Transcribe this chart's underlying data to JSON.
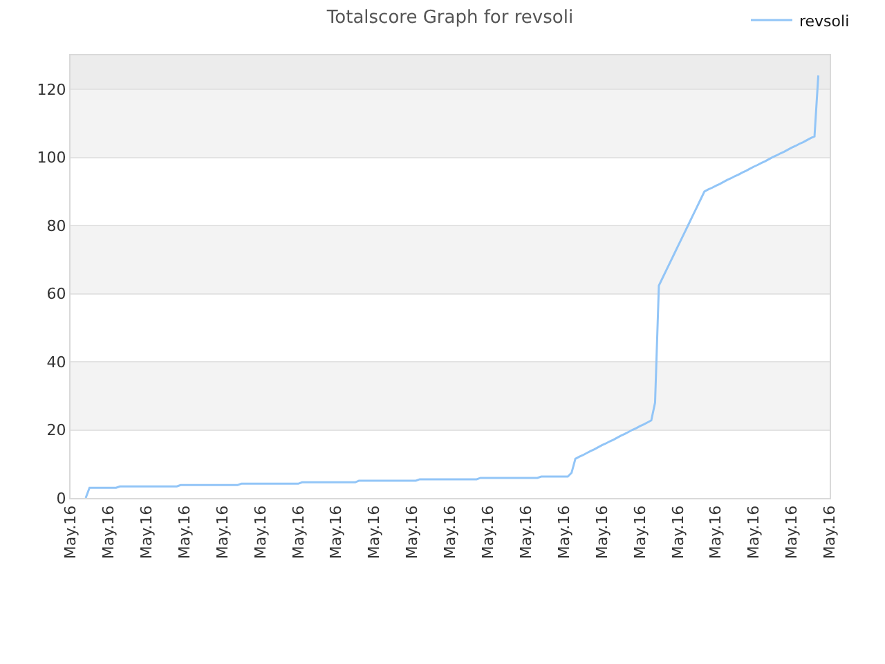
{
  "chart_data": {
    "type": "line",
    "title": "Totalscore Graph for revsoli",
    "categories": [
      "May.16",
      null,
      null,
      null,
      null,
      null,
      null,
      null,
      null,
      null,
      "May.16",
      null,
      null,
      null,
      null,
      null,
      null,
      null,
      null,
      null,
      "May.16",
      null,
      null,
      null,
      null,
      null,
      null,
      null,
      null,
      null,
      "May.16",
      null,
      null,
      null,
      null,
      null,
      null,
      null,
      null,
      null,
      "May.16",
      null,
      null,
      null,
      null,
      null,
      null,
      null,
      null,
      null,
      "May.16",
      null,
      null,
      null,
      null,
      null,
      null,
      null,
      null,
      null,
      "May.16",
      null,
      null,
      null,
      null,
      null,
      null,
      null,
      null,
      null,
      "May.16",
      null,
      null,
      null,
      null,
      null,
      null,
      null,
      null,
      null,
      "May.16",
      null,
      null,
      null,
      null,
      null,
      null,
      null,
      null,
      null,
      "May.16",
      null,
      null,
      null,
      null,
      null,
      null,
      null,
      null,
      null,
      "May.16",
      null,
      null,
      null,
      null,
      null,
      null,
      null,
      null,
      null,
      "May.16",
      null,
      null,
      null,
      null,
      null,
      null,
      null,
      null,
      null,
      "May.16",
      null,
      null,
      null,
      null,
      null,
      null,
      null,
      null,
      null,
      "May.16",
      null,
      null,
      null,
      null,
      null,
      null,
      null,
      null,
      null,
      "May.16",
      null,
      null,
      null,
      null,
      null,
      null,
      null,
      null,
      null,
      "May.16",
      null,
      null,
      null,
      null,
      null,
      null,
      null,
      null,
      null,
      "May.16",
      null,
      null,
      null,
      null,
      null,
      null,
      null,
      null,
      null,
      "May.16",
      null,
      null,
      null,
      null,
      null,
      null,
      null,
      null,
      null,
      "May.16",
      null,
      null,
      null,
      null,
      null,
      null,
      null,
      null,
      null,
      "May.16",
      null,
      null,
      null,
      null,
      null,
      null,
      null,
      null,
      null,
      "May.16"
    ],
    "series": [
      {
        "name": "revsoli",
        "color": "#92c5f7",
        "values": [
          null,
          null,
          null,
          null,
          0,
          3.0,
          3.0,
          3.0,
          3.0,
          3.0,
          3.0,
          3.0,
          3.0,
          3.4,
          3.4,
          3.4,
          3.4,
          3.4,
          3.4,
          3.4,
          3.4,
          3.4,
          3.4,
          3.4,
          3.4,
          3.4,
          3.4,
          3.4,
          3.4,
          3.8,
          3.8,
          3.8,
          3.8,
          3.8,
          3.8,
          3.8,
          3.8,
          3.8,
          3.8,
          3.8,
          3.8,
          3.8,
          3.8,
          3.8,
          3.8,
          4.2,
          4.2,
          4.2,
          4.2,
          4.2,
          4.2,
          4.2,
          4.2,
          4.2,
          4.2,
          4.2,
          4.2,
          4.2,
          4.2,
          4.2,
          4.2,
          4.6,
          4.6,
          4.6,
          4.6,
          4.6,
          4.6,
          4.6,
          4.6,
          4.6,
          4.6,
          4.6,
          4.6,
          4.6,
          4.6,
          4.6,
          5.1,
          5.1,
          5.1,
          5.1,
          5.1,
          5.1,
          5.1,
          5.1,
          5.1,
          5.1,
          5.1,
          5.1,
          5.1,
          5.1,
          5.1,
          5.1,
          5.5,
          5.5,
          5.5,
          5.5,
          5.5,
          5.5,
          5.5,
          5.5,
          5.5,
          5.5,
          5.5,
          5.5,
          5.5,
          5.5,
          5.5,
          5.5,
          5.9,
          5.9,
          5.9,
          5.9,
          5.9,
          5.9,
          5.9,
          5.9,
          5.9,
          5.9,
          5.9,
          5.9,
          5.9,
          5.9,
          5.9,
          5.9,
          6.3,
          6.3,
          6.3,
          6.3,
          6.3,
          6.3,
          6.3,
          6.3,
          7.4,
          11.5,
          12.1,
          12.6,
          13.2,
          13.8,
          14.3,
          14.9,
          15.5,
          16.0,
          16.6,
          17.1,
          17.7,
          18.3,
          18.8,
          19.4,
          20.0,
          20.5,
          21.1,
          21.6,
          22.2,
          22.8,
          28.0,
          62.4,
          64.7,
          67.0,
          69.3,
          71.6,
          73.9,
          76.2,
          78.5,
          80.8,
          83.1,
          85.4,
          87.7,
          90.0,
          90.6,
          91.1,
          91.7,
          92.2,
          92.8,
          93.4,
          93.9,
          94.5,
          95.0,
          95.6,
          96.1,
          96.7,
          97.3,
          97.8,
          98.4,
          98.9,
          99.5,
          100.1,
          100.6,
          101.2,
          101.7,
          102.3,
          102.9,
          103.4,
          104.0,
          104.5,
          105.1,
          105.7,
          106.2,
          124.1,
          null,
          null,
          null
        ]
      }
    ],
    "ylim": [
      0,
      130
    ],
    "yticks": [
      0,
      20,
      40,
      60,
      80,
      100,
      120
    ],
    "bands": [
      {
        "axis": "y",
        "from": 20,
        "to": 40,
        "color": "#f3f3f3"
      },
      {
        "axis": "y",
        "from": 60,
        "to": 80,
        "color": "#f3f3f3"
      },
      {
        "axis": "y",
        "from": 100,
        "to": 120,
        "color": "#f3f3f3"
      },
      {
        "axis": "y",
        "from": 120,
        "to": 130,
        "color": "#ececec"
      }
    ],
    "grid": "y",
    "legend": "top right"
  }
}
